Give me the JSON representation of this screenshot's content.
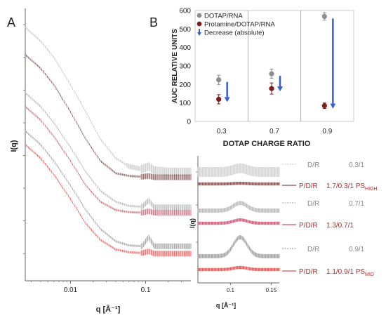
{
  "chart_data": [
    {
      "panel": "A",
      "type": "scatter",
      "xlabel": "q [Å⁻¹]",
      "ylabel": "I(q)",
      "x_scale": "log",
      "y_scale": "log",
      "xlim": [
        0.0025,
        0.4
      ],
      "x_ticks": [
        0.01,
        0.1
      ],
      "x_tick_labels": [
        "0.01",
        "0.1"
      ],
      "grid": false,
      "series": [
        {
          "color": "#b0b0b0",
          "points": [
            [
              0.0025,
              9.3
            ],
            [
              0.004,
              8.8
            ],
            [
              0.006,
              8.2
            ],
            [
              0.01,
              7.2
            ],
            [
              0.016,
              6.2
            ],
            [
              0.025,
              5.2
            ],
            [
              0.04,
              4.5
            ],
            [
              0.06,
              4.2
            ],
            [
              0.09,
              4.1
            ],
            [
              0.11,
              4.2
            ],
            [
              0.13,
              4.05
            ],
            [
              0.2,
              4.0
            ],
            [
              0.4,
              4.0
            ]
          ]
        },
        {
          "color": "#5a1a1a",
          "points": [
            [
              0.0025,
              8.3
            ],
            [
              0.004,
              7.8
            ],
            [
              0.006,
              7.2
            ],
            [
              0.01,
              6.2
            ],
            [
              0.016,
              5.2
            ],
            [
              0.025,
              4.4
            ],
            [
              0.04,
              3.95
            ],
            [
              0.06,
              3.85
            ],
            [
              0.09,
              3.82
            ],
            [
              0.11,
              3.85
            ],
            [
              0.13,
              3.8
            ],
            [
              0.2,
              3.8
            ],
            [
              0.4,
              3.8
            ]
          ]
        },
        {
          "color": "#999999",
          "points": [
            [
              0.0025,
              6.9
            ],
            [
              0.004,
              6.4
            ],
            [
              0.006,
              5.8
            ],
            [
              0.01,
              4.9
            ],
            [
              0.016,
              4.0
            ],
            [
              0.025,
              3.3
            ],
            [
              0.04,
              2.9
            ],
            [
              0.06,
              2.75
            ],
            [
              0.09,
              2.72
            ],
            [
              0.11,
              2.95
            ],
            [
              0.13,
              2.7
            ],
            [
              0.2,
              2.7
            ],
            [
              0.4,
              2.7
            ]
          ]
        },
        {
          "color": "#b0304a",
          "points": [
            [
              0.0025,
              6.4
            ],
            [
              0.004,
              5.9
            ],
            [
              0.006,
              5.3
            ],
            [
              0.01,
              4.4
            ],
            [
              0.016,
              3.5
            ],
            [
              0.025,
              2.9
            ],
            [
              0.04,
              2.6
            ],
            [
              0.06,
              2.52
            ],
            [
              0.09,
              2.5
            ],
            [
              0.11,
              2.55
            ],
            [
              0.13,
              2.5
            ],
            [
              0.2,
              2.5
            ],
            [
              0.4,
              2.5
            ]
          ]
        },
        {
          "color": "#7a7a7a",
          "points": [
            [
              0.0025,
              5.5
            ],
            [
              0.004,
              5.0
            ],
            [
              0.006,
              4.4
            ],
            [
              0.01,
              3.5
            ],
            [
              0.016,
              2.6
            ],
            [
              0.025,
              1.9
            ],
            [
              0.04,
              1.45
            ],
            [
              0.06,
              1.3
            ],
            [
              0.09,
              1.27
            ],
            [
              0.11,
              1.6
            ],
            [
              0.13,
              1.27
            ],
            [
              0.2,
              1.27
            ],
            [
              0.4,
              1.27
            ]
          ]
        },
        {
          "color": "#e02020",
          "points": [
            [
              0.0025,
              5.0
            ],
            [
              0.004,
              4.5
            ],
            [
              0.006,
              3.9
            ],
            [
              0.01,
              3.0
            ],
            [
              0.016,
              2.1
            ],
            [
              0.025,
              1.5
            ],
            [
              0.04,
              1.15
            ],
            [
              0.06,
              1.05
            ],
            [
              0.09,
              1.02
            ],
            [
              0.11,
              1.08
            ],
            [
              0.13,
              1.0
            ],
            [
              0.2,
              1.0
            ],
            [
              0.4,
              1.0
            ]
          ]
        }
      ]
    },
    {
      "panel": "B",
      "type": "scatter",
      "xlabel": "DOTAP CHARGE RATIO",
      "ylabel": "AUC RELATIVE UNITS",
      "categories": [
        "0.3",
        "0.7",
        "0.9"
      ],
      "ylim": [
        0,
        600
      ],
      "y_ticks": [
        0,
        100,
        200,
        300,
        400,
        500,
        600
      ],
      "legend_position": "top-left",
      "series": [
        {
          "name": "DOTAP/RNA",
          "color": "#8c8c8c",
          "values": [
            225,
            258,
            568
          ],
          "errors": [
            25,
            25,
            20
          ]
        },
        {
          "name": "Protamine/DOTAP/RNA",
          "color": "#7a1e1e",
          "values": [
            120,
            178,
            85
          ],
          "errors": [
            25,
            30,
            15
          ]
        }
      ],
      "arrows": {
        "name": "Decrease (absolute)",
        "color": "#3a5fcd",
        "from": [
          225,
          258,
          568
        ],
        "to": [
          120,
          178,
          85
        ]
      }
    },
    {
      "panel": "inset",
      "type": "line",
      "xlabel": "q [Å⁻¹]",
      "ylabel": "I(q)",
      "xlim": [
        0.06,
        0.16
      ],
      "x_ticks": [
        0.1,
        0.15
      ],
      "x_tick_labels": [
        "0.1",
        "0.15"
      ],
      "peak_q": 0.112,
      "pairs": [
        {
          "top_color": "#c8c8c8",
          "bottom_color": "#6a1e1e",
          "peak": [
            0.3,
            0.05
          ],
          "label_top": "D/R",
          "ratio_top": "0.3/1",
          "label_bottom": "P/D/R",
          "ratio_bottom": "1.7/0.3/1 PS",
          "sub_bottom": "HIGH"
        },
        {
          "top_color": "#a8a8a8",
          "bottom_color": "#c02850",
          "peak": [
            0.45,
            0.2
          ],
          "label_top": "D/R",
          "ratio_top": "0.7/1",
          "label_bottom": "P/D/R",
          "ratio_bottom": "1.3/0.7/1",
          "sub_bottom": ""
        },
        {
          "top_color": "#8a8a8a",
          "bottom_color": "#e02020",
          "peak": [
            0.9,
            0.1
          ],
          "label_top": "D/R",
          "ratio_top": "0.9/1",
          "label_bottom": "P/D/R",
          "ratio_bottom": "1.1/0.9/1 PS",
          "sub_bottom": "MID"
        }
      ]
    }
  ],
  "labels": {
    "panel_a": "A",
    "panel_b": "B"
  }
}
